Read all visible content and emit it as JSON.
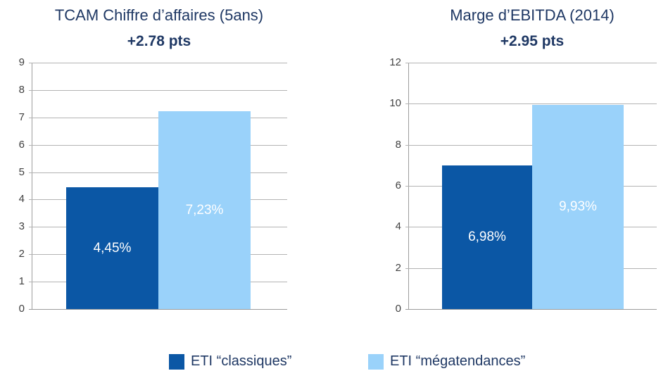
{
  "colors": {
    "dark_blue": "#0B57A5",
    "light_blue": "#9AD2FA",
    "title_navy": "#1F3864",
    "tick_text": "#404040",
    "gridline": "#B3B3B3",
    "axis": "#9C9C9C",
    "bar_label_text": "#FFFFFF"
  },
  "chart_data": [
    {
      "type": "bar",
      "title": "TCAM Chiffre d’affaires (5ans)",
      "subtitle": "+2.78 pts",
      "categories": [
        "ETI “classiques”",
        "ETI “mégatendances”"
      ],
      "values": [
        4.45,
        7.23
      ],
      "value_labels": [
        "4,45%",
        "7,23%"
      ],
      "series_colors": [
        "dark_blue",
        "light_blue"
      ],
      "xlabel": "",
      "ylabel": "",
      "ylim": [
        0,
        9
      ],
      "ytick_step": 1,
      "grid": true,
      "legend_position": "bottom"
    },
    {
      "type": "bar",
      "title": "Marge d’EBITDA (2014)",
      "subtitle": "+2.95 pts",
      "categories": [
        "ETI “classiques”",
        "ETI “mégatendances”"
      ],
      "values": [
        6.98,
        9.93
      ],
      "value_labels": [
        "6,98%",
        "9,93%"
      ],
      "series_colors": [
        "dark_blue",
        "light_blue"
      ],
      "xlabel": "",
      "ylabel": "",
      "ylim": [
        0,
        12
      ],
      "ytick_step": 2,
      "grid": true,
      "legend_position": "bottom"
    }
  ],
  "legend": [
    {
      "label": "ETI “classiques”",
      "color_key": "dark_blue"
    },
    {
      "label": "ETI “mégatendances”",
      "color_key": "light_blue"
    }
  ]
}
